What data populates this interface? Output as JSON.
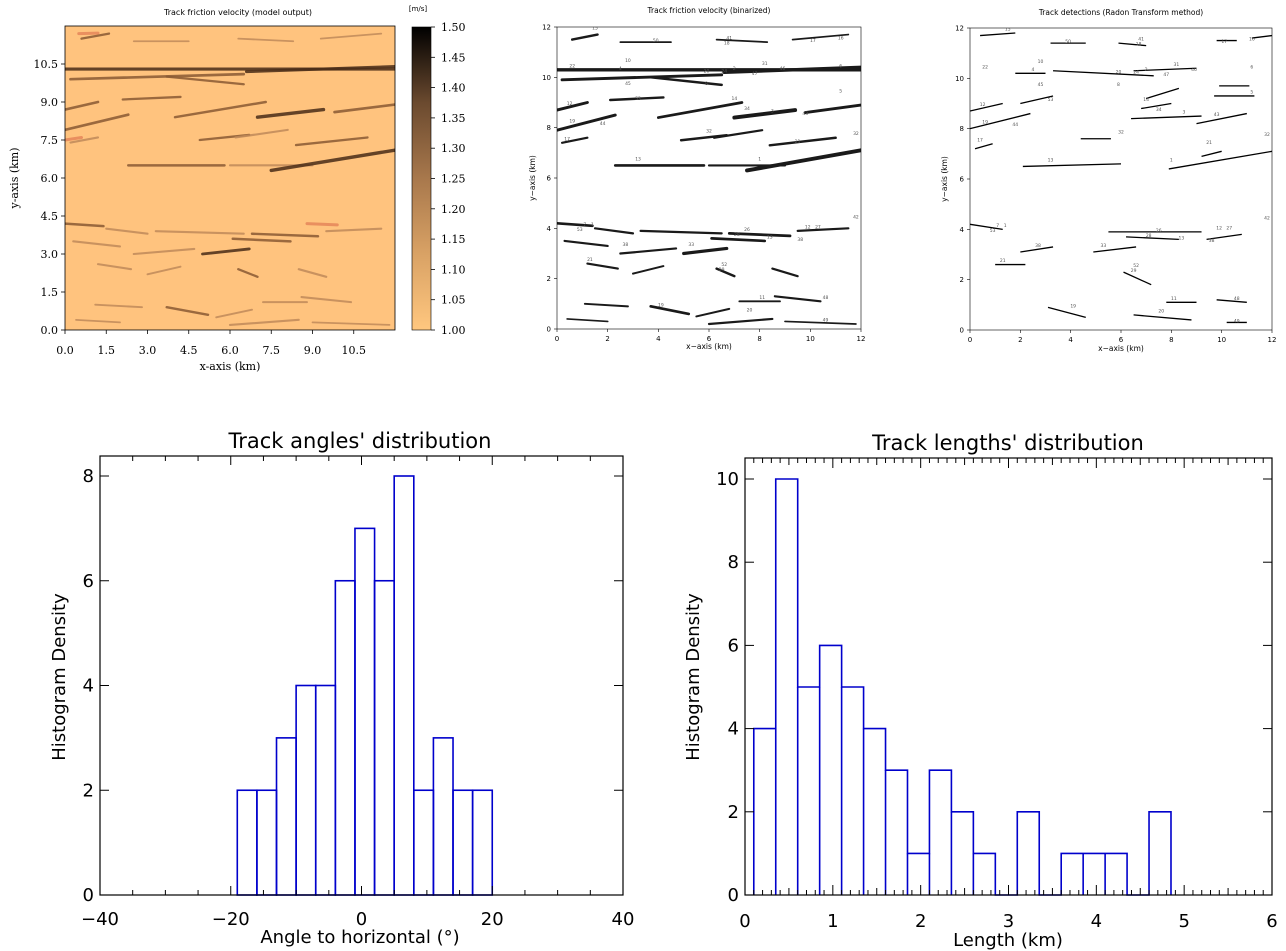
{
  "charts": [
    {
      "id": "model",
      "title": "Track friction velocity (model output)",
      "xlabel": "x-axis (km)",
      "ylabel": "y-axis (km)",
      "xticks": [
        "0.0",
        "1.5",
        "3.0",
        "4.5",
        "6.0",
        "7.5",
        "9.0",
        "10.5"
      ],
      "yticks": [
        "0.0",
        "1.5",
        "3.0",
        "4.5",
        "6.0",
        "7.5",
        "9.0",
        "10.5"
      ]
    },
    {
      "id": "binarized",
      "title": "Track friction velocity (binarized)",
      "xlabel": "x−axis (km)",
      "ylabel": "y−axis (km)",
      "ticks": [
        "0",
        "2",
        "4",
        "6",
        "8",
        "10",
        "12"
      ]
    },
    {
      "id": "radon",
      "title": "Track detections (Radon Transform method)",
      "xlabel": "x−axis (km)",
      "ylabel": "y−axis (km)",
      "ticks": [
        "0",
        "2",
        "4",
        "6",
        "8",
        "10",
        "12"
      ]
    },
    {
      "id": "angles",
      "title": "Track angles' distribution",
      "xlabel": "Angle to horizontal (°)",
      "ylabel": "Histogram Density",
      "xticks": [
        "−40",
        "−20",
        "0",
        "20",
        "40"
      ],
      "yticks": [
        "0",
        "2",
        "4",
        "6",
        "8"
      ]
    },
    {
      "id": "lengths",
      "title": "Track lengths' distribution",
      "xlabel": "Length (km)",
      "ylabel": "Histogram Density",
      "xticks": [
        "0",
        "1",
        "2",
        "3",
        "4",
        "5",
        "6"
      ],
      "yticks": [
        "0",
        "2",
        "4",
        "6",
        "8",
        "10"
      ]
    }
  ],
  "colorbar": {
    "unit": "[m/s]",
    "ticks": [
      "1.00",
      "1.05",
      "1.10",
      "1.15",
      "1.20",
      "1.25",
      "1.30",
      "1.35",
      "1.40",
      "1.45",
      "1.50"
    ],
    "range": [
      1.0,
      1.5
    ],
    "colormap": "copper_r"
  },
  "chart_data": [
    {
      "type": "heatmap",
      "title": "Track friction velocity (model output)",
      "xlabel": "x-axis (km)",
      "ylabel": "y-axis (km)",
      "xlim": [
        0,
        12
      ],
      "ylim": [
        0,
        12
      ],
      "value_range": [
        1.0,
        1.5
      ],
      "units": "[m/s]"
    },
    {
      "type": "scatter",
      "title": "Track friction velocity (binarized)",
      "xlabel": "x−axis (km)",
      "ylabel": "y−axis (km)",
      "xlim": [
        0,
        12
      ],
      "ylim": [
        0,
        12
      ]
    },
    {
      "type": "scatter",
      "title": "Track detections (Radon Transform method)",
      "xlabel": "x−axis (km)",
      "ylabel": "y−axis (km)",
      "xlim": [
        0,
        12
      ],
      "ylim": [
        0,
        12
      ]
    },
    {
      "type": "bar",
      "title": "Track angles' distribution",
      "xlabel": "Angle to horizontal (°)",
      "ylabel": "Histogram Density",
      "xlim": [
        -40,
        40
      ],
      "ylim": [
        0,
        8
      ],
      "bin_edges": [
        -19,
        -16,
        -13,
        -10,
        -7,
        -4,
        -1,
        2,
        5,
        8,
        11,
        14,
        17,
        20
      ],
      "values": [
        2,
        2,
        3,
        4,
        4,
        6,
        7,
        6,
        8,
        2,
        3,
        2,
        2
      ]
    },
    {
      "type": "bar",
      "title": "Track lengths' distribution",
      "xlabel": "Length (km)",
      "ylabel": "Histogram Density",
      "xlim": [
        0,
        6
      ],
      "ylim": [
        0,
        10
      ],
      "bin_edges": [
        0.1,
        0.35,
        0.6,
        0.85,
        1.1,
        1.35,
        1.6,
        1.85,
        2.1,
        2.35,
        2.6,
        2.85,
        3.1,
        3.35,
        3.6,
        3.85,
        4.1,
        4.35,
        4.6,
        4.85
      ],
      "values": [
        4,
        10,
        5,
        6,
        5,
        4,
        3,
        1,
        3,
        2,
        1,
        0,
        2,
        0,
        1,
        1,
        1,
        0,
        2
      ]
    }
  ],
  "tracks": [
    [
      0.0,
      10.3,
      12.0,
      10.3,
      0.1
    ],
    [
      0.2,
      9.9,
      6.5,
      10.1,
      0.08
    ],
    [
      6.6,
      10.2,
      12.0,
      10.4,
      0.1
    ],
    [
      0.0,
      8.7,
      1.2,
      9.0,
      0.08
    ],
    [
      2.1,
      9.1,
      4.2,
      9.2,
      0.06
    ],
    [
      3.7,
      10.0,
      6.5,
      9.7,
      0.06
    ],
    [
      4.0,
      8.4,
      7.3,
      9.0,
      0.07
    ],
    [
      7.0,
      8.4,
      9.4,
      8.7,
      0.12
    ],
    [
      9.8,
      8.6,
      12.0,
      8.9,
      0.08
    ],
    [
      0.0,
      7.9,
      2.3,
      8.5,
      0.08
    ],
    [
      0.2,
      7.4,
      1.2,
      7.6,
      0.05
    ],
    [
      4.9,
      7.5,
      6.7,
      7.7,
      0.06
    ],
    [
      6.2,
      7.6,
      8.1,
      7.9,
      0.05
    ],
    [
      8.4,
      7.3,
      11.0,
      7.6,
      0.06
    ],
    [
      2.3,
      6.5,
      5.8,
      6.5,
      0.07
    ],
    [
      6.0,
      6.5,
      9.0,
      6.5,
      0.05
    ],
    [
      7.5,
      6.3,
      12.0,
      7.1,
      0.12
    ],
    [
      0.0,
      4.2,
      1.4,
      4.1,
      0.07
    ],
    [
      1.5,
      4.0,
      3.0,
      3.8,
      0.05
    ],
    [
      3.3,
      3.9,
      6.5,
      3.8,
      0.05
    ],
    [
      6.8,
      3.8,
      9.2,
      3.7,
      0.07
    ],
    [
      9.5,
      3.9,
      11.5,
      4.0,
      0.05
    ],
    [
      0.3,
      3.5,
      2.0,
      3.3,
      0.05
    ],
    [
      2.5,
      3.0,
      4.7,
      3.2,
      0.05
    ],
    [
      5.0,
      3.0,
      6.7,
      3.2,
      0.09
    ],
    [
      6.1,
      3.6,
      8.2,
      3.5,
      0.07
    ],
    [
      1.2,
      2.6,
      2.4,
      2.4,
      0.05
    ],
    [
      3.0,
      2.2,
      4.2,
      2.5,
      0.04
    ],
    [
      6.3,
      2.4,
      7.0,
      2.1,
      0.06
    ],
    [
      8.5,
      2.4,
      9.5,
      2.1,
      0.05
    ],
    [
      1.1,
      1.0,
      2.8,
      0.9,
      0.04
    ],
    [
      3.7,
      0.9,
      5.2,
      0.6,
      0.07
    ],
    [
      5.5,
      0.5,
      6.8,
      0.8,
      0.04
    ],
    [
      6.0,
      0.2,
      8.5,
      0.4,
      0.05
    ],
    [
      7.2,
      1.1,
      8.8,
      1.1,
      0.04
    ],
    [
      8.6,
      1.3,
      10.4,
      1.1,
      0.05
    ],
    [
      0.6,
      11.5,
      1.6,
      11.7,
      0.06
    ],
    [
      2.5,
      11.4,
      4.5,
      11.4,
      0.03
    ],
    [
      6.3,
      11.5,
      8.3,
      11.4,
      0.03
    ],
    [
      9.3,
      11.5,
      11.5,
      11.7,
      0.03
    ],
    [
      0.4,
      0.4,
      2.0,
      0.3,
      0.03
    ],
    [
      9.0,
      0.3,
      11.8,
      0.2,
      0.03
    ]
  ],
  "radon_lines": [
    [
      0.0,
      8.7,
      1.3,
      9.0
    ],
    [
      2.0,
      9.0,
      3.3,
      9.3
    ],
    [
      3.3,
      10.3,
      7.3,
      10.1
    ],
    [
      6.5,
      10.3,
      9.0,
      10.4
    ],
    [
      9.7,
      9.3,
      11.3,
      9.3
    ],
    [
      0.0,
      8.0,
      2.4,
      8.6
    ],
    [
      6.4,
      8.4,
      9.2,
      8.5
    ],
    [
      9.0,
      8.2,
      11.0,
      8.6
    ],
    [
      6.8,
      8.8,
      8.0,
      9.0
    ],
    [
      4.4,
      7.6,
      5.6,
      7.6
    ],
    [
      0.2,
      7.2,
      0.9,
      7.4
    ],
    [
      2.1,
      6.5,
      6.0,
      6.6
    ],
    [
      7.9,
      6.4,
      12.0,
      7.1
    ],
    [
      9.2,
      6.9,
      10.0,
      7.1
    ],
    [
      0.0,
      4.2,
      1.3,
      4.0
    ],
    [
      5.5,
      3.9,
      9.2,
      3.9
    ],
    [
      6.2,
      3.7,
      8.3,
      3.6
    ],
    [
      9.4,
      3.6,
      10.8,
      3.8
    ],
    [
      2.0,
      3.1,
      3.3,
      3.3
    ],
    [
      4.9,
      3.1,
      6.6,
      3.3
    ],
    [
      1.0,
      2.6,
      2.2,
      2.6
    ],
    [
      6.1,
      2.3,
      7.2,
      1.8
    ],
    [
      7.8,
      1.1,
      9.0,
      1.1
    ],
    [
      9.8,
      1.2,
      11.0,
      1.1
    ],
    [
      3.1,
      0.9,
      4.6,
      0.5
    ],
    [
      6.5,
      0.6,
      8.8,
      0.4
    ],
    [
      10.2,
      0.3,
      11.0,
      0.3
    ],
    [
      0.4,
      11.7,
      1.8,
      11.8
    ],
    [
      3.2,
      11.4,
      4.6,
      11.4
    ],
    [
      5.9,
      11.4,
      7.0,
      11.3
    ],
    [
      9.8,
      11.5,
      10.6,
      11.5
    ],
    [
      11.2,
      11.6,
      12.0,
      11.7
    ],
    [
      1.8,
      10.2,
      3.0,
      10.2
    ],
    [
      7.0,
      9.2,
      8.3,
      9.6
    ],
    [
      9.9,
      9.7,
      11.1,
      9.7
    ]
  ],
  "track_labels": [
    [
      "15",
      1.5,
      11.9
    ],
    [
      "50",
      3.9,
      11.4
    ],
    [
      "41",
      6.8,
      11.5
    ],
    [
      "18",
      6.7,
      11.3
    ],
    [
      "17",
      10.1,
      11.4
    ],
    [
      "16",
      11.2,
      11.5
    ],
    [
      "22",
      0.6,
      10.4
    ],
    [
      "10",
      2.8,
      10.6
    ],
    [
      "4",
      2.5,
      10.3
    ],
    [
      "20",
      5.9,
      10.2
    ],
    [
      "24",
      6.6,
      10.2
    ],
    [
      "2",
      7.0,
      10.3
    ],
    [
      "47",
      7.8,
      10.1
    ],
    [
      "31",
      8.2,
      10.5
    ],
    [
      "46",
      8.9,
      10.3
    ],
    [
      "6",
      11.2,
      10.4
    ],
    [
      "45",
      2.8,
      9.7
    ],
    [
      "8",
      5.9,
      9.7
    ],
    [
      "14",
      7.0,
      9.1
    ],
    [
      "5",
      11.2,
      9.4
    ],
    [
      "12",
      0.5,
      8.9
    ],
    [
      "53",
      3.2,
      9.1
    ],
    [
      "34",
      7.5,
      8.7
    ],
    [
      "3",
      8.5,
      8.6
    ],
    [
      "43",
      9.8,
      8.5
    ],
    [
      "19",
      0.6,
      8.2
    ],
    [
      "44",
      1.8,
      8.1
    ],
    [
      "32",
      6.0,
      7.8
    ],
    [
      "17",
      0.4,
      7.5
    ],
    [
      "21",
      9.5,
      7.4
    ],
    [
      "32",
      11.8,
      7.7
    ],
    [
      "13",
      3.2,
      6.7
    ],
    [
      "1",
      8.0,
      6.7
    ],
    [
      "42",
      11.8,
      4.4
    ],
    [
      "7",
      1.1,
      4.1
    ],
    [
      "1",
      1.4,
      4.1
    ],
    [
      "53",
      0.9,
      3.9
    ],
    [
      "26",
      7.5,
      3.9
    ],
    [
      "12",
      9.9,
      4.0
    ],
    [
      "27",
      10.3,
      4.0
    ],
    [
      "28",
      7.1,
      3.7
    ],
    [
      "13",
      8.4,
      3.6
    ],
    [
      "38",
      9.6,
      3.5
    ],
    [
      "38",
      2.7,
      3.3
    ],
    [
      "33",
      5.3,
      3.3
    ],
    [
      "21",
      1.3,
      2.7
    ],
    [
      "52",
      6.6,
      2.5
    ],
    [
      "29",
      6.5,
      2.3
    ],
    [
      "11",
      8.1,
      1.2
    ],
    [
      "48",
      10.6,
      1.2
    ],
    [
      "19",
      4.1,
      0.9
    ],
    [
      "20",
      7.6,
      0.7
    ],
    [
      "49",
      10.6,
      0.3
    ]
  ]
}
